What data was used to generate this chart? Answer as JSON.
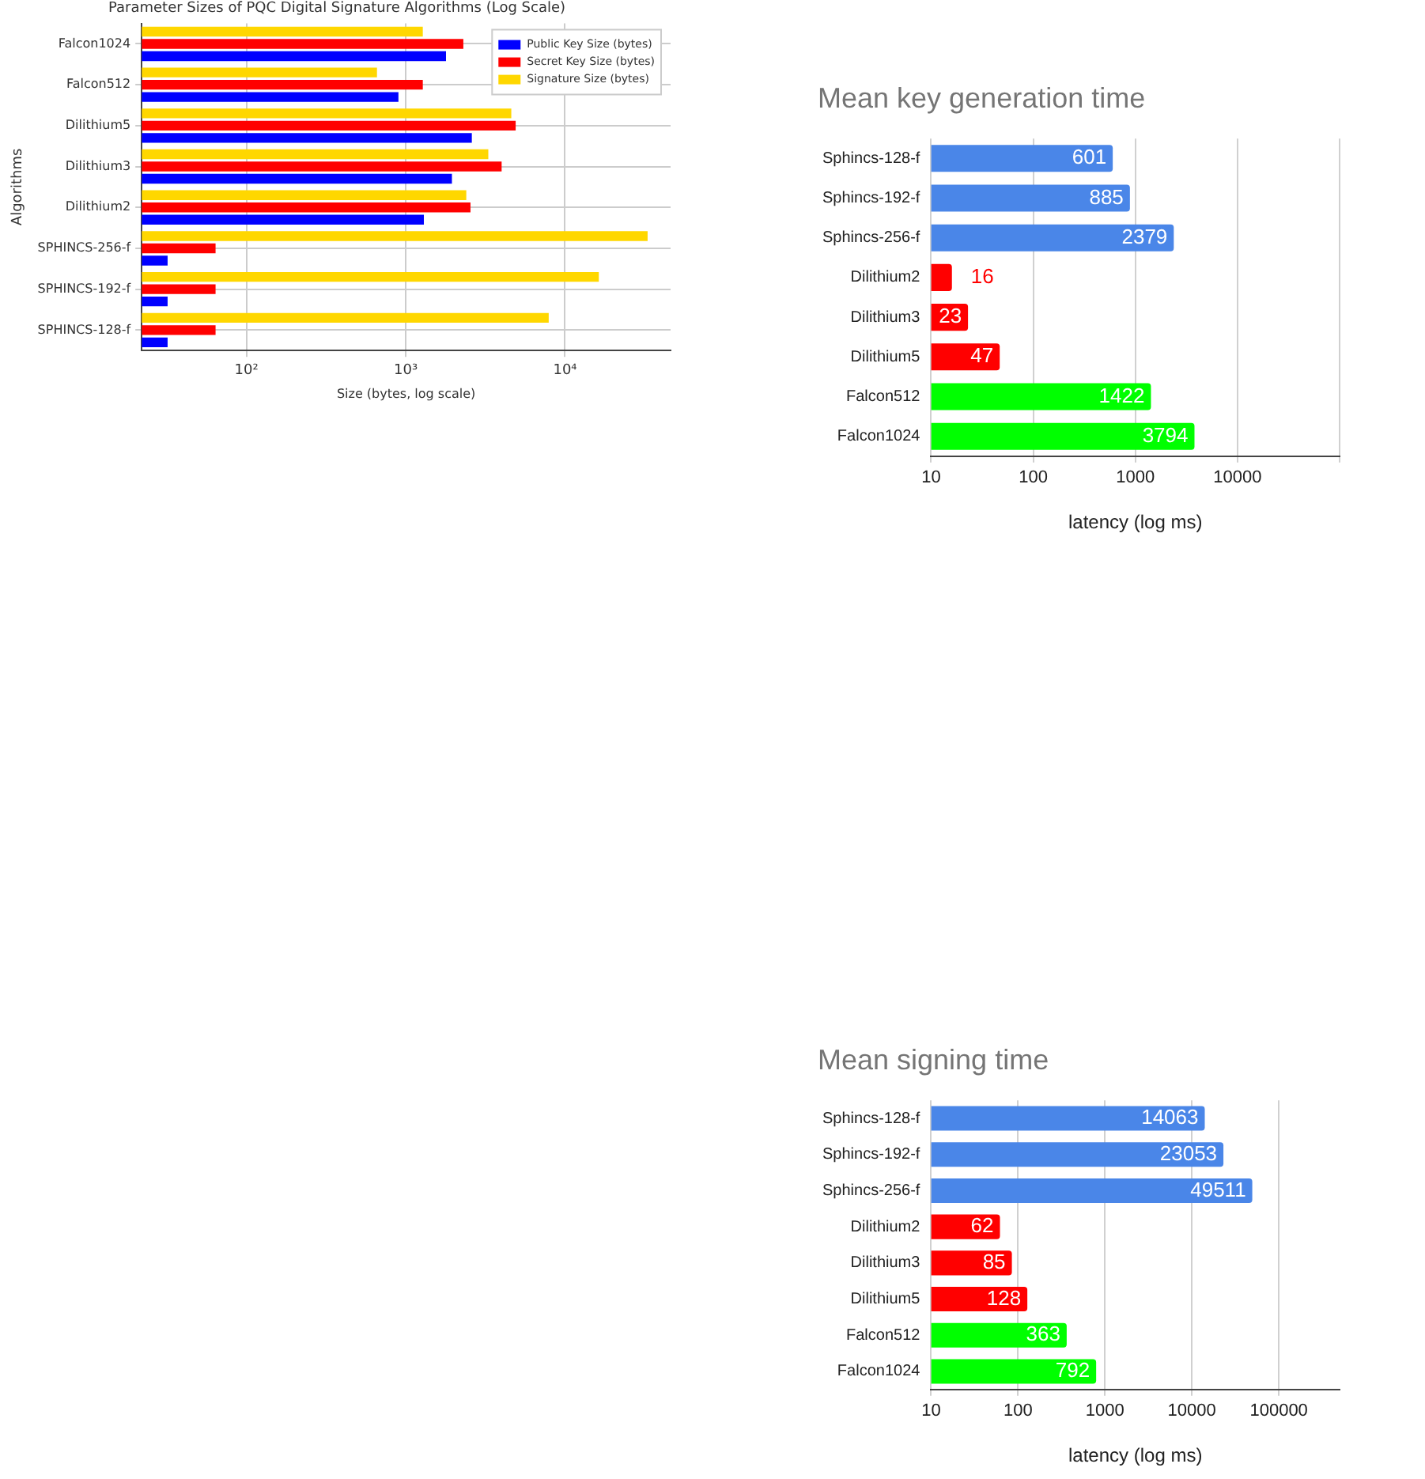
{
  "chart_data": [
    {
      "type": "bar",
      "orientation": "horizontal",
      "title": "Parameter Sizes of PQC Digital Signature Algorithms (Log Scale)",
      "xlabel": "Size (bytes, log scale)",
      "ylabel": "Algorithms",
      "log": "x",
      "xlim": [
        22,
        46000
      ],
      "xticks": [
        {
          "value": 100,
          "label": "10²"
        },
        {
          "value": 1000,
          "label": "10³"
        },
        {
          "value": 10000,
          "label": "10⁴"
        }
      ],
      "grid": true,
      "legend": "top right",
      "categories": [
        "Falcon1024",
        "Falcon512",
        "Dilithium5",
        "Dilithium3",
        "Dilithium2",
        "SPHINCS-256-f",
        "SPHINCS-192-f",
        "SPHINCS-128-f"
      ],
      "series": [
        {
          "name": "Public Key Size (bytes)",
          "color": "#0000ff",
          "values": [
            1790,
            900,
            2600,
            1950,
            1300,
            32,
            32,
            32
          ]
        },
        {
          "name": "Secret Key Size (bytes)",
          "color": "#ff0000",
          "values": [
            2300,
            1280,
            4900,
            4000,
            2550,
            64,
            64,
            64
          ]
        },
        {
          "name": "Signature Size (bytes)",
          "color": "#ffd700",
          "values": [
            1280,
            660,
            4600,
            3300,
            2400,
            33000,
            16300,
            7900
          ]
        }
      ]
    },
    {
      "type": "bar",
      "orientation": "horizontal",
      "title": "Mean key generation time",
      "xlabel": "latency (log ms)",
      "log": "x",
      "xlim": [
        10,
        100000
      ],
      "xticks": [
        10,
        100,
        1000,
        10000,
        {
          "value": 100000,
          "label": null
        }
      ],
      "grid": "x",
      "data_labels": true,
      "categories": [
        "Sphincs-128-f",
        "Sphincs-192-f",
        "Sphincs-256-f",
        "Dilithium2",
        "Dilithium3",
        "Dilithium5",
        "Falcon512",
        "Falcon1024"
      ],
      "values": [
        601,
        885,
        2379,
        16,
        23,
        47,
        1422,
        3794
      ],
      "colors": [
        "#4a86e8",
        "#4a86e8",
        "#4a86e8",
        "#ff0000",
        "#ff0000",
        "#ff0000",
        "#00ff00",
        "#00ff00"
      ]
    },
    {
      "type": "bar",
      "orientation": "horizontal",
      "title": "Mean signing time",
      "xlabel": "latency (log ms)",
      "log": "x",
      "xlim": [
        10,
        500000
      ],
      "xticks": [
        10,
        100,
        1000,
        10000,
        100000
      ],
      "grid": "x",
      "data_labels": true,
      "categories": [
        "Sphincs-128-f",
        "Sphincs-192-f",
        "Sphincs-256-f",
        "Dilithium2",
        "Dilithium3",
        "Dilithium5",
        "Falcon512",
        "Falcon1024"
      ],
      "values": [
        14063,
        23053,
        49511,
        62,
        85,
        128,
        363,
        792
      ],
      "colors": [
        "#4a86e8",
        "#4a86e8",
        "#4a86e8",
        "#ff0000",
        "#ff0000",
        "#ff0000",
        "#00ff00",
        "#00ff00"
      ]
    }
  ]
}
